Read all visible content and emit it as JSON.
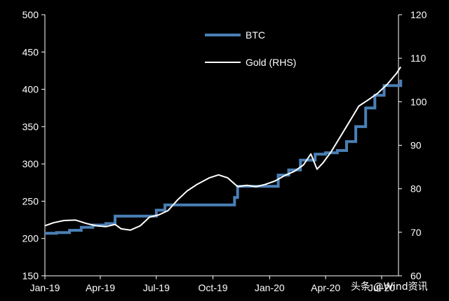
{
  "chart_data": {
    "type": "line",
    "title": "",
    "xlabel": "",
    "ylabel": "",
    "y2label": "",
    "x_ticks": [
      "Jan-19",
      "Apr-19",
      "Jul-19",
      "Oct-19",
      "Jan-20",
      "Apr-20",
      "Jul-20"
    ],
    "y_left": {
      "ylim": [
        150,
        500
      ],
      "ticks": [
        "150",
        "200",
        "250",
        "300",
        "350",
        "400",
        "450",
        "500"
      ]
    },
    "y_right": {
      "ylim": [
        60,
        120
      ],
      "ticks": [
        "60",
        "70",
        "80",
        "90",
        "100",
        "110",
        "120"
      ]
    },
    "grid": false,
    "legend_position": "top-center",
    "series": [
      {
        "name": "BTC",
        "axis": "left",
        "color": "#4a7fb5",
        "points": [
          [
            "2019-01-01",
            207
          ],
          [
            "2019-01-20",
            208
          ],
          [
            "2019-02-10",
            211
          ],
          [
            "2019-03-01",
            215
          ],
          [
            "2019-03-20",
            218
          ],
          [
            "2019-04-10",
            220
          ],
          [
            "2019-04-25",
            230
          ],
          [
            "2019-06-15",
            230
          ],
          [
            "2019-07-01",
            238
          ],
          [
            "2019-07-15",
            245
          ],
          [
            "2019-08-15",
            245
          ],
          [
            "2019-09-01",
            245
          ],
          [
            "2019-10-01",
            245
          ],
          [
            "2019-10-15",
            245
          ],
          [
            "2019-11-05",
            255
          ],
          [
            "2019-11-10",
            270
          ],
          [
            "2019-12-01",
            270
          ],
          [
            "2020-01-01",
            270
          ],
          [
            "2020-01-10",
            270
          ],
          [
            "2020-01-15",
            285
          ],
          [
            "2020-02-01",
            292
          ],
          [
            "2020-02-20",
            305
          ],
          [
            "2020-03-15",
            313
          ],
          [
            "2020-04-01",
            315
          ],
          [
            "2020-04-20",
            318
          ],
          [
            "2020-05-05",
            330
          ],
          [
            "2020-05-20",
            350
          ],
          [
            "2020-06-05",
            375
          ],
          [
            "2020-06-20",
            392
          ],
          [
            "2020-07-05",
            405
          ],
          [
            "2020-07-20",
            405
          ],
          [
            "2020-08-01",
            413
          ]
        ]
      },
      {
        "name": "Gold (RHS)",
        "axis": "right",
        "color": "#ffffff",
        "points": [
          [
            "2019-01-01",
            71.5
          ],
          [
            "2019-01-15",
            72.2
          ],
          [
            "2019-02-01",
            72.7
          ],
          [
            "2019-02-20",
            72.8
          ],
          [
            "2019-03-10",
            72.0
          ],
          [
            "2019-03-25",
            71.5
          ],
          [
            "2019-04-10",
            71.3
          ],
          [
            "2019-04-25",
            71.8
          ],
          [
            "2019-05-05",
            70.8
          ],
          [
            "2019-05-20",
            70.5
          ],
          [
            "2019-06-05",
            71.5
          ],
          [
            "2019-06-20",
            73.5
          ],
          [
            "2019-07-05",
            74.0
          ],
          [
            "2019-07-20",
            75.0
          ],
          [
            "2019-08-05",
            77.5
          ],
          [
            "2019-08-20",
            79.5
          ],
          [
            "2019-09-05",
            81.0
          ],
          [
            "2019-09-25",
            82.5
          ],
          [
            "2019-10-10",
            83.2
          ],
          [
            "2019-10-25",
            82.5
          ],
          [
            "2019-11-10",
            80.5
          ],
          [
            "2019-11-25",
            80.8
          ],
          [
            "2019-12-10",
            80.5
          ],
          [
            "2019-12-25",
            81.0
          ],
          [
            "2020-01-10",
            81.8
          ],
          [
            "2020-01-25",
            83.0
          ],
          [
            "2020-02-10",
            84.0
          ],
          [
            "2020-02-25",
            85.5
          ],
          [
            "2020-03-08",
            88.0
          ],
          [
            "2020-03-18",
            84.5
          ],
          [
            "2020-03-28",
            86.0
          ],
          [
            "2020-04-10",
            88.5
          ],
          [
            "2020-04-25",
            92.0
          ],
          [
            "2020-05-10",
            95.5
          ],
          [
            "2020-05-25",
            99.0
          ],
          [
            "2020-06-10",
            100.5
          ],
          [
            "2020-06-25",
            102.0
          ],
          [
            "2020-07-10",
            104.0
          ],
          [
            "2020-07-25",
            106.5
          ],
          [
            "2020-08-01",
            108.0
          ]
        ]
      }
    ]
  },
  "watermark": {
    "text": "头条 @Wind资讯"
  }
}
